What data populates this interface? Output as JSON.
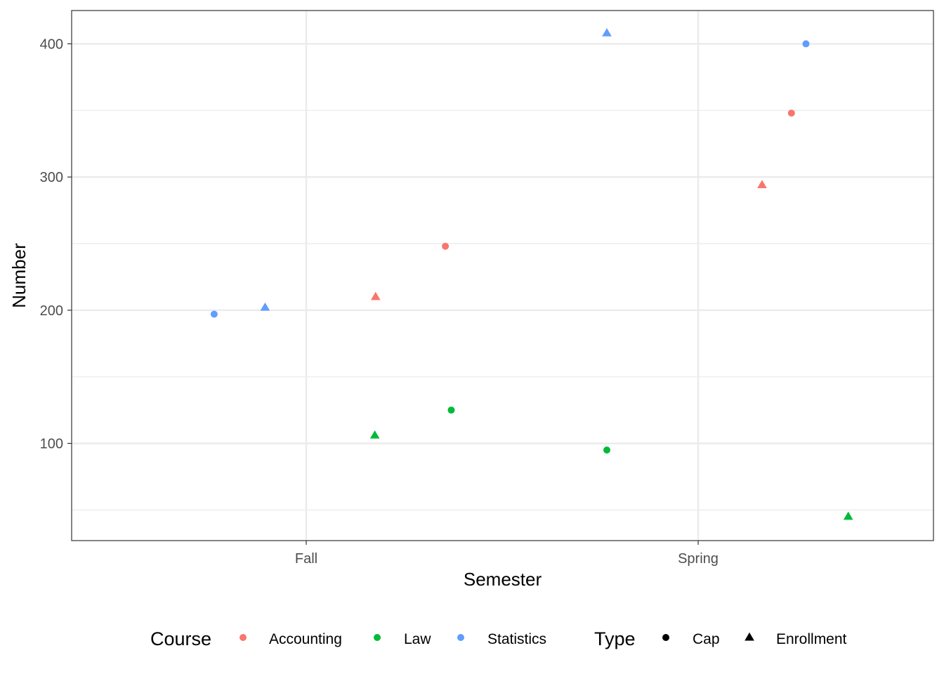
{
  "chart_data": {
    "type": "scatter",
    "xlabel": "Semester",
    "ylabel": "Number",
    "x_categories": [
      "Fall",
      "Spring"
    ],
    "y_ticks": [
      100,
      200,
      300,
      400
    ],
    "ylim": [
      27,
      425
    ],
    "grid": true,
    "legend_position": "bottom",
    "legends": [
      {
        "title": "Course",
        "kind": "color",
        "entries": [
          {
            "label": "Accounting",
            "color": "#F8766D"
          },
          {
            "label": "Law",
            "color": "#00BA38"
          },
          {
            "label": "Statistics",
            "color": "#619CFF"
          }
        ]
      },
      {
        "title": "Type",
        "kind": "shape",
        "entries": [
          {
            "label": "Cap",
            "shape": "circle"
          },
          {
            "label": "Enrollment",
            "shape": "triangle"
          }
        ]
      }
    ],
    "points": [
      {
        "semester": "Fall",
        "jitter": -0.235,
        "course": "Statistics",
        "type": "Cap",
        "value": 197
      },
      {
        "semester": "Fall",
        "jitter": -0.105,
        "course": "Statistics",
        "type": "Enrollment",
        "value": 202
      },
      {
        "semester": "Fall",
        "jitter": 0.177,
        "course": "Accounting",
        "type": "Enrollment",
        "value": 210
      },
      {
        "semester": "Fall",
        "jitter": 0.355,
        "course": "Accounting",
        "type": "Cap",
        "value": 248
      },
      {
        "semester": "Fall",
        "jitter": 0.175,
        "course": "Law",
        "type": "Enrollment",
        "value": 106
      },
      {
        "semester": "Fall",
        "jitter": 0.37,
        "course": "Law",
        "type": "Cap",
        "value": 125
      },
      {
        "semester": "Spring",
        "jitter": -0.233,
        "course": "Statistics",
        "type": "Enrollment",
        "value": 408
      },
      {
        "semester": "Spring",
        "jitter": -0.233,
        "course": "Law",
        "type": "Cap",
        "value": 95
      },
      {
        "semester": "Spring",
        "jitter": 0.163,
        "course": "Accounting",
        "type": "Enrollment",
        "value": 294
      },
      {
        "semester": "Spring",
        "jitter": 0.238,
        "course": "Accounting",
        "type": "Cap",
        "value": 348
      },
      {
        "semester": "Spring",
        "jitter": 0.275,
        "course": "Statistics",
        "type": "Cap",
        "value": 400
      },
      {
        "semester": "Spring",
        "jitter": 0.383,
        "course": "Law",
        "type": "Enrollment",
        "value": 45
      }
    ]
  }
}
